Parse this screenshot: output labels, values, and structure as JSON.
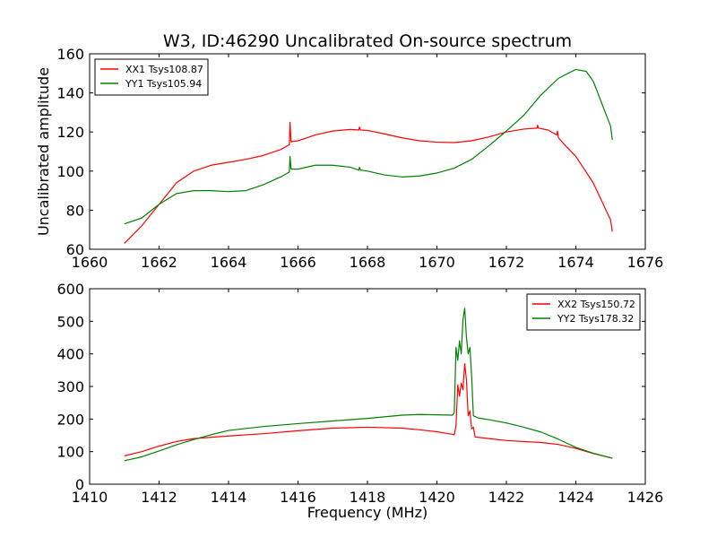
{
  "chart_data": [
    {
      "type": "line",
      "title": "W3, ID:46290 Uncalibrated On-source spectrum",
      "xlabel": "",
      "ylabel": "Uncalibrated amplitude",
      "xlim": [
        1660,
        1676
      ],
      "ylim": [
        60,
        160
      ],
      "xticks": [
        1660,
        1662,
        1664,
        1666,
        1668,
        1670,
        1672,
        1674,
        1676
      ],
      "yticks": [
        60,
        80,
        100,
        120,
        140,
        160
      ],
      "grid": false,
      "legend_position": "top-left",
      "series": [
        {
          "name": "XX1 Tsys108.87",
          "color": "#ff0000",
          "points": [
            [
              1661.0,
              63
            ],
            [
              1661.5,
              72
            ],
            [
              1662.0,
              83
            ],
            [
              1662.5,
              94
            ],
            [
              1663.0,
              100
            ],
            [
              1663.5,
              103
            ],
            [
              1664.0,
              104.5
            ],
            [
              1664.5,
              106
            ],
            [
              1665.0,
              108
            ],
            [
              1665.5,
              111
            ],
            [
              1665.75,
              113.5
            ],
            [
              1665.77,
              125
            ],
            [
              1665.8,
              115
            ],
            [
              1666.0,
              115.5
            ],
            [
              1666.5,
              118.5
            ],
            [
              1667.0,
              120.5
            ],
            [
              1667.5,
              121.3
            ],
            [
              1667.75,
              121
            ],
            [
              1667.77,
              122.5
            ],
            [
              1667.8,
              121
            ],
            [
              1668.0,
              120.8
            ],
            [
              1668.5,
              119
            ],
            [
              1669.0,
              117
            ],
            [
              1669.5,
              115.5
            ],
            [
              1670.0,
              114.8
            ],
            [
              1670.5,
              114.6
            ],
            [
              1671.0,
              115.5
            ],
            [
              1671.5,
              117.5
            ],
            [
              1672.0,
              120
            ],
            [
              1672.5,
              121.5
            ],
            [
              1672.88,
              122
            ],
            [
              1672.9,
              123.5
            ],
            [
              1672.92,
              122
            ],
            [
              1673.2,
              121
            ],
            [
              1673.45,
              118.5
            ],
            [
              1673.47,
              120.5
            ],
            [
              1673.5,
              117
            ],
            [
              1673.7,
              113
            ],
            [
              1674.0,
              107.5
            ],
            [
              1674.5,
              94
            ],
            [
              1675.0,
              75
            ],
            [
              1675.05,
              69
            ]
          ]
        },
        {
          "name": "YY1 Tsys105.94",
          "color": "#008000",
          "points": [
            [
              1661.0,
              73
            ],
            [
              1661.5,
              76
            ],
            [
              1662.0,
              83
            ],
            [
              1662.5,
              88.5
            ],
            [
              1663.0,
              90
            ],
            [
              1663.5,
              90
            ],
            [
              1664.0,
              89.5
            ],
            [
              1664.5,
              90
            ],
            [
              1665.0,
              93
            ],
            [
              1665.5,
              97
            ],
            [
              1665.75,
              99.5
            ],
            [
              1665.77,
              107.5
            ],
            [
              1665.8,
              101
            ],
            [
              1666.0,
              101
            ],
            [
              1666.5,
              103
            ],
            [
              1667.0,
              103
            ],
            [
              1667.5,
              102
            ],
            [
              1667.75,
              100.5
            ],
            [
              1667.77,
              102
            ],
            [
              1667.8,
              100.5
            ],
            [
              1668.0,
              100
            ],
            [
              1668.5,
              98
            ],
            [
              1669.0,
              97
            ],
            [
              1669.5,
              97.5
            ],
            [
              1670.0,
              99
            ],
            [
              1670.5,
              101.5
            ],
            [
              1671.0,
              106
            ],
            [
              1671.5,
              113
            ],
            [
              1672.0,
              120.5
            ],
            [
              1672.5,
              128.5
            ],
            [
              1673.0,
              139
            ],
            [
              1673.5,
              147.5
            ],
            [
              1674.0,
              152
            ],
            [
              1674.3,
              151
            ],
            [
              1674.5,
              146
            ],
            [
              1675.0,
              123
            ],
            [
              1675.05,
              116
            ]
          ]
        }
      ]
    },
    {
      "type": "line",
      "title": "",
      "xlabel": "Frequency (MHz)",
      "ylabel": "",
      "xlim": [
        1410,
        1426
      ],
      "ylim": [
        0,
        600
      ],
      "xticks": [
        1410,
        1412,
        1414,
        1416,
        1418,
        1420,
        1422,
        1424,
        1426
      ],
      "yticks": [
        0,
        100,
        200,
        300,
        400,
        500,
        600
      ],
      "grid": false,
      "legend_position": "top-right",
      "series": [
        {
          "name": "XX2 Tsys150.72",
          "color": "#ff0000",
          "points": [
            [
              1411.0,
              87
            ],
            [
              1411.5,
              100
            ],
            [
              1412.0,
              117
            ],
            [
              1412.5,
              131
            ],
            [
              1413.0,
              140
            ],
            [
              1414.0,
              148
            ],
            [
              1415.0,
              155
            ],
            [
              1416.0,
              164
            ],
            [
              1417.0,
              172
            ],
            [
              1418.0,
              175
            ],
            [
              1419.0,
              172
            ],
            [
              1419.5,
              167
            ],
            [
              1420.0,
              161
            ],
            [
              1420.4,
              154
            ],
            [
              1420.5,
              152
            ],
            [
              1420.55,
              180
            ],
            [
              1420.6,
              305
            ],
            [
              1420.65,
              270
            ],
            [
              1420.7,
              310
            ],
            [
              1420.75,
              290
            ],
            [
              1420.8,
              370
            ],
            [
              1420.85,
              320
            ],
            [
              1420.9,
              210
            ],
            [
              1420.95,
              225
            ],
            [
              1421.0,
              170
            ],
            [
              1421.05,
              175
            ],
            [
              1421.1,
              145
            ],
            [
              1421.5,
              140
            ],
            [
              1422.0,
              134
            ],
            [
              1423.0,
              128
            ],
            [
              1423.5,
              122
            ],
            [
              1424.0,
              110
            ],
            [
              1424.5,
              94
            ],
            [
              1425.05,
              80
            ]
          ]
        },
        {
          "name": "YY2 Tsys178.32",
          "color": "#008000",
          "points": [
            [
              1411.0,
              72
            ],
            [
              1411.5,
              84
            ],
            [
              1412.0,
              102
            ],
            [
              1412.5,
              121
            ],
            [
              1413.0,
              137
            ],
            [
              1413.5,
              152
            ],
            [
              1414.0,
              165
            ],
            [
              1415.0,
              177
            ],
            [
              1416.0,
              186
            ],
            [
              1417.0,
              194
            ],
            [
              1418.0,
              202
            ],
            [
              1419.0,
              212
            ],
            [
              1419.5,
              214
            ],
            [
              1420.0,
              213
            ],
            [
              1420.45,
              212
            ],
            [
              1420.5,
              220
            ],
            [
              1420.55,
              420
            ],
            [
              1420.6,
              380
            ],
            [
              1420.65,
              440
            ],
            [
              1420.7,
              400
            ],
            [
              1420.75,
              505
            ],
            [
              1420.8,
              540
            ],
            [
              1420.85,
              450
            ],
            [
              1420.9,
              400
            ],
            [
              1420.95,
              420
            ],
            [
              1421.0,
              330
            ],
            [
              1421.05,
              210
            ],
            [
              1421.2,
              203
            ],
            [
              1421.5,
              198
            ],
            [
              1422.0,
              188
            ],
            [
              1422.5,
              175
            ],
            [
              1423.0,
              160
            ],
            [
              1423.5,
              138
            ],
            [
              1424.0,
              113
            ],
            [
              1424.5,
              95
            ],
            [
              1425.05,
              80
            ]
          ]
        }
      ]
    }
  ]
}
